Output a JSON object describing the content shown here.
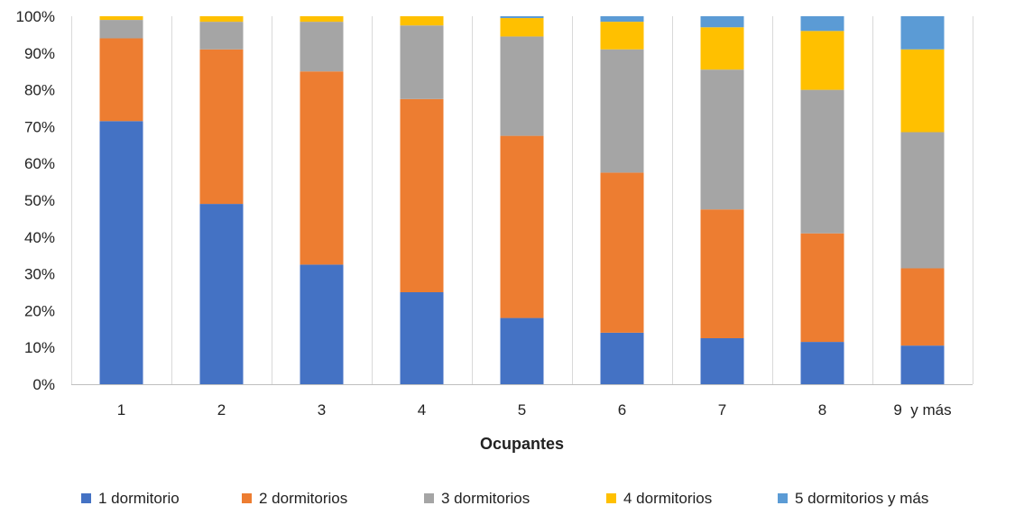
{
  "chart_data": {
    "type": "bar",
    "stacked": true,
    "percent": true,
    "categories": [
      "1",
      "2",
      "3",
      "4",
      "5",
      "6",
      "7",
      "8",
      "9  y más"
    ],
    "xlabel": "Ocupantes",
    "ylabel": "",
    "ylim": [
      0,
      100
    ],
    "yticks": [
      "0%",
      "10%",
      "20%",
      "30%",
      "40%",
      "50%",
      "60%",
      "70%",
      "80%",
      "90%",
      "100%"
    ],
    "grid": {
      "vertical": true,
      "horizontal": false
    },
    "legend_position": "bottom",
    "series": [
      {
        "name": "1 dormitorio",
        "color": "#4472C4",
        "values": [
          71.5,
          49.0,
          32.5,
          25.0,
          18.0,
          14.0,
          12.5,
          11.5,
          10.5
        ]
      },
      {
        "name": "2 dormitorios",
        "color": "#ED7D31",
        "values": [
          22.5,
          42.0,
          52.5,
          52.5,
          49.5,
          43.5,
          35.0,
          29.5,
          21.0
        ]
      },
      {
        "name": "3 dormitorios",
        "color": "#A5A5A5",
        "values": [
          5.0,
          7.5,
          13.5,
          20.0,
          27.0,
          33.5,
          38.0,
          39.0,
          37.0
        ]
      },
      {
        "name": "4 dormitorios",
        "color": "#FFC000",
        "values": [
          1.0,
          1.5,
          1.5,
          2.5,
          5.0,
          7.5,
          11.5,
          16.0,
          22.5
        ]
      },
      {
        "name": "5 dormitorios y más",
        "color": "#5B9BD5",
        "values": [
          0.0,
          0.0,
          0.0,
          0.0,
          0.5,
          1.5,
          3.0,
          4.0,
          9.0
        ]
      }
    ]
  }
}
